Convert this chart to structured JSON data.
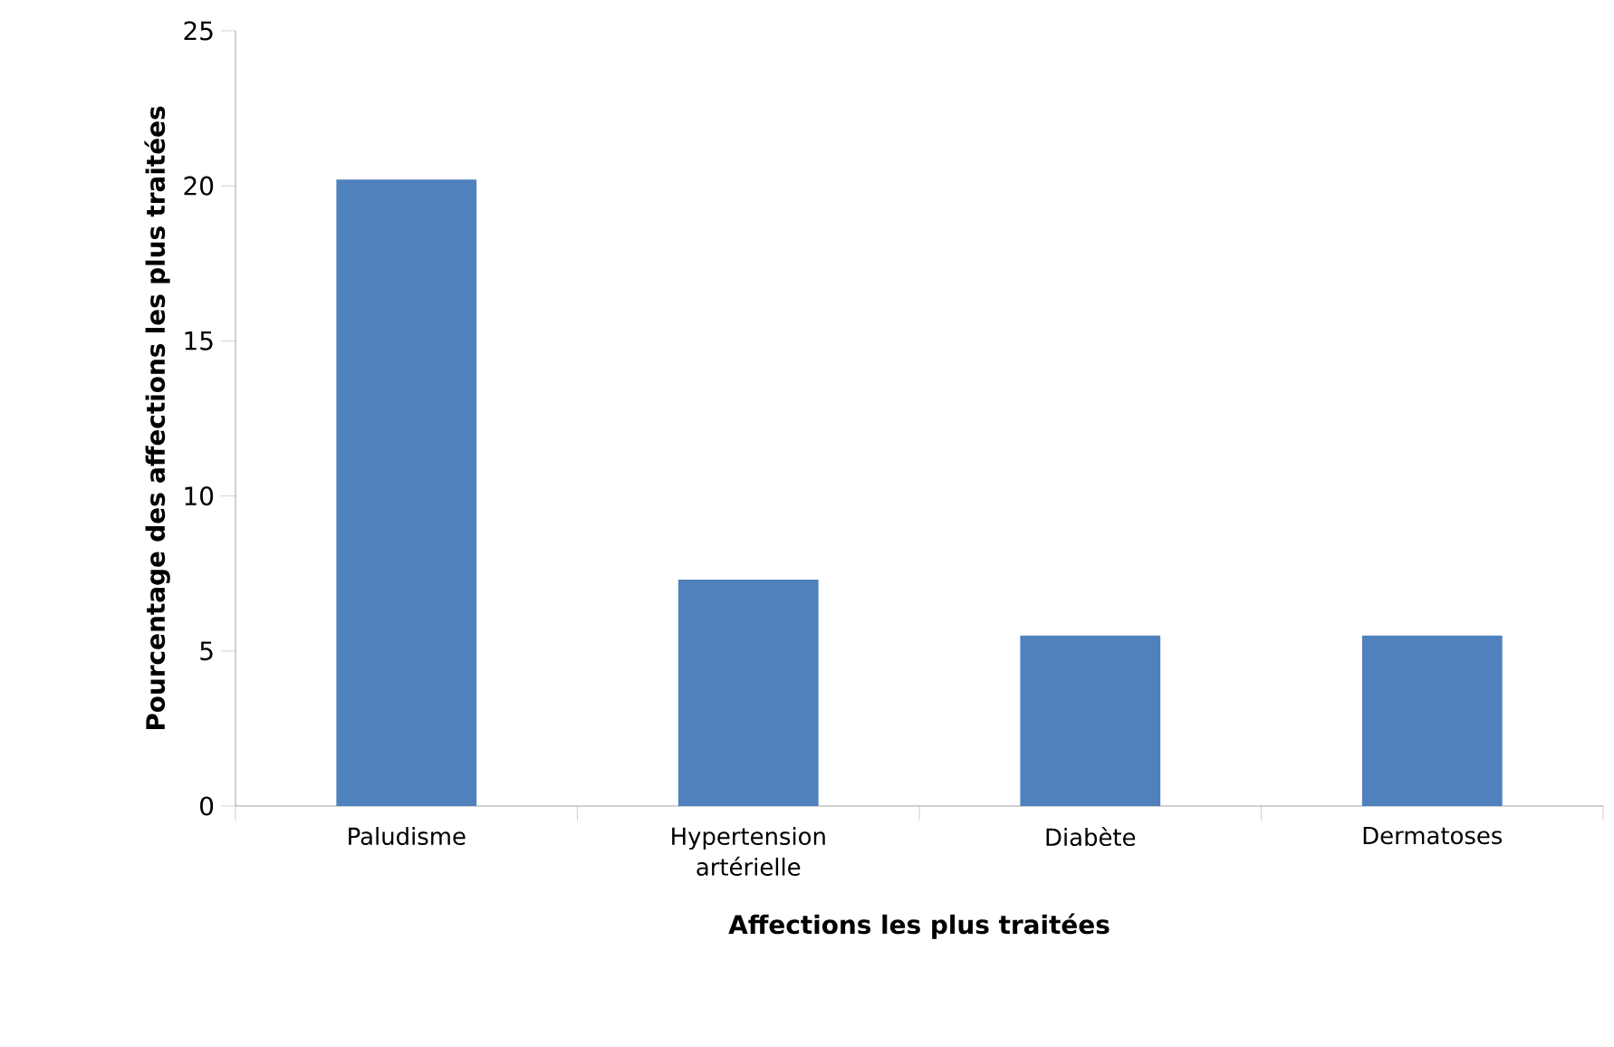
{
  "chart_data": {
    "type": "bar",
    "xlabel": "Affections les plus traitées",
    "ylabel": "Pourcentage des affections les plus traitées",
    "categories": [
      "Paludisme",
      "Hypertension artérielle",
      "Diabète",
      "Dermatoses"
    ],
    "values": [
      20.2,
      7.3,
      5.5,
      5.5
    ],
    "color": "#4f81bd",
    "ylim": [
      0,
      25
    ],
    "yticks": [
      0,
      5,
      10,
      15,
      20,
      25
    ],
    "grid": false
  }
}
